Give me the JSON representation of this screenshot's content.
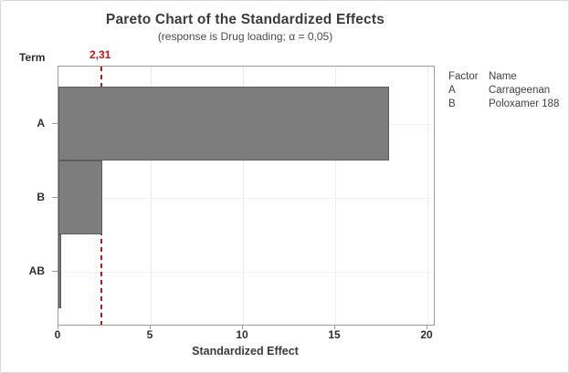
{
  "window": {
    "background": "#ffffff",
    "border_color": "#d6d8db"
  },
  "chart_data": {
    "type": "bar",
    "orientation": "horizontal",
    "title": "Pareto Chart of the Standardized Effects",
    "subtitle": "(response is Drug loading; α = 0,05)",
    "xlabel": "Standardized Effect",
    "ylabel": "Term",
    "categories": [
      "A",
      "B",
      "AB"
    ],
    "values": [
      17.9,
      2.37,
      0.15
    ],
    "xlim": [
      0,
      20.35
    ],
    "xticks": [
      0,
      5,
      10,
      15,
      20
    ],
    "grid": "light gridlines at x ticks and category centers",
    "legend_position": "right of plot",
    "reference_line": {
      "value": 2.31,
      "label": "2,31",
      "style": "dashed",
      "color": "#c01818"
    },
    "legend": {
      "columns": [
        "Factor",
        "Name"
      ],
      "rows": [
        {
          "factor": "A",
          "name": "Carrageenan"
        },
        {
          "factor": "B",
          "name": "Poloxamer 188"
        }
      ]
    },
    "colors": {
      "bar_fill": "#7d7d7d",
      "bar_border": "#5c5c5c",
      "frame": "#9b9b9b",
      "gridline": "#ededed",
      "text": "#3a3a3a"
    }
  }
}
